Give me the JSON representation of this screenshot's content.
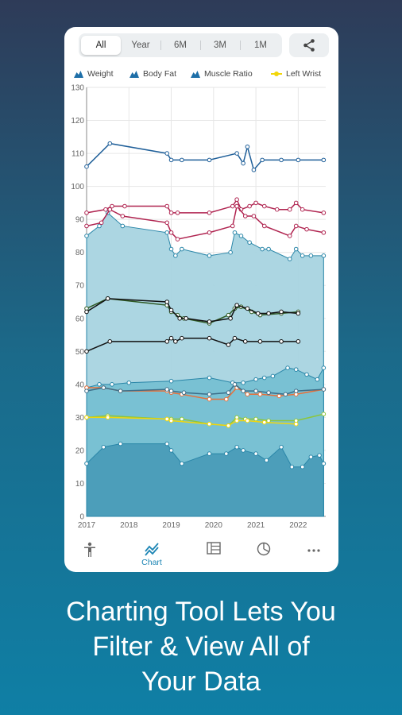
{
  "ranges": {
    "options": [
      "All",
      "Year",
      "6M",
      "3M",
      "1M"
    ],
    "selected": "All"
  },
  "toolbar": {
    "share_icon": "share-icon"
  },
  "legend": [
    {
      "label": "Weight",
      "color": "#1e6fa8",
      "icon": "mountain-icon"
    },
    {
      "label": "Body Fat",
      "color": "#1e6fa8",
      "icon": "mountain-icon"
    },
    {
      "label": "Muscle Ratio",
      "color": "#1e6fa8",
      "icon": "mountain-icon"
    },
    {
      "label": "Left Wrist",
      "color": "#f2d60a",
      "icon": "line-dot-icon"
    }
  ],
  "chart_data": {
    "type": "line",
    "x_ticks": [
      "2017",
      "2018",
      "2019",
      "2020",
      "2021",
      "2022"
    ],
    "y_ticks": [
      0,
      10,
      20,
      30,
      40,
      50,
      60,
      70,
      80,
      90,
      100,
      110,
      120,
      130
    ],
    "ylim": [
      0,
      130
    ],
    "xlim": [
      2017.0,
      2022.65
    ],
    "grid": true,
    "areas": [
      {
        "name": "",
        "color": "#a8d4e0",
        "x": [
          2017.0,
          2017.3,
          2017.5,
          2017.85,
          2018.9,
          2019.0,
          2019.1,
          2019.25,
          2019.9,
          2020.4,
          2020.5,
          2020.65,
          2020.85,
          2021.15,
          2021.3,
          2021.8,
          2021.95,
          2022.1,
          2022.3,
          2022.6
        ],
        "values": [
          85,
          88,
          92,
          88,
          86,
          81,
          79,
          81,
          79,
          80,
          86,
          85,
          83,
          81,
          81,
          78,
          81,
          79,
          79,
          79
        ]
      },
      {
        "name": "",
        "color": "#76c0d2",
        "x": [
          2017.0,
          2017.3,
          2017.6,
          2018.0,
          2019.0,
          2019.9,
          2020.45,
          2020.7,
          2021.0,
          2021.2,
          2021.4,
          2021.75,
          2021.95,
          2022.2,
          2022.45,
          2022.6
        ],
        "values": [
          39,
          40,
          40,
          40.5,
          41,
          42,
          40.5,
          40.5,
          41.5,
          42,
          42.5,
          45,
          44.5,
          43,
          41.5,
          45
        ]
      },
      {
        "name": "",
        "color": "#4a9cb8",
        "x": [
          2017.0,
          2017.4,
          2017.8,
          2018.9,
          2019.0,
          2019.25,
          2019.9,
          2020.3,
          2020.55,
          2020.7,
          2021.0,
          2021.25,
          2021.6,
          2021.85,
          2022.1,
          2022.3,
          2022.5,
          2022.6
        ],
        "values": [
          16,
          21,
          22,
          22,
          20,
          16,
          19,
          19,
          21,
          20,
          19,
          17,
          21,
          15,
          15,
          18,
          18.5,
          16
        ]
      }
    ],
    "series": [
      {
        "name": "",
        "color": "#1f5f99",
        "x": [
          2017.0,
          2017.55,
          2018.9,
          2019.0,
          2019.25,
          2019.9,
          2020.55,
          2020.7,
          2020.8,
          2020.95,
          2021.15,
          2021.6,
          2022.0,
          2022.6
        ],
        "values": [
          106,
          113,
          110,
          108,
          108,
          108,
          110,
          107,
          112,
          105,
          108,
          108,
          108,
          108
        ]
      },
      {
        "name": "",
        "color": "#b02450",
        "x": [
          2017.0,
          2017.45,
          2017.6,
          2017.9,
          2018.9,
          2019.0,
          2019.15,
          2019.9,
          2020.45,
          2020.55,
          2020.65,
          2020.85,
          2021.0,
          2021.2,
          2021.5,
          2021.8,
          2021.95,
          2022.1,
          2022.6
        ],
        "values": [
          92,
          93,
          94,
          94,
          94,
          92,
          92,
          92,
          94,
          96,
          93,
          94,
          95,
          94,
          93,
          93,
          95,
          93,
          92
        ]
      },
      {
        "name": "",
        "color": "#b02450",
        "x": [
          2017.0,
          2017.35,
          2017.55,
          2017.85,
          2018.9,
          2019.0,
          2019.15,
          2019.9,
          2020.45,
          2020.55,
          2020.75,
          2020.95,
          2021.2,
          2021.8,
          2021.95,
          2022.2,
          2022.6
        ],
        "values": [
          88,
          89,
          93,
          91,
          89,
          86,
          84,
          86,
          88,
          94,
          91,
          91,
          88,
          85,
          88,
          87,
          86
        ]
      },
      {
        "name": "",
        "color": "#2f5a25",
        "x": [
          2017.0,
          2017.5,
          2018.9,
          2019.0,
          2019.15,
          2019.3,
          2019.9,
          2020.35,
          2020.5,
          2020.65,
          2020.9,
          2021.1,
          2021.6,
          2022.0
        ],
        "values": [
          63,
          66,
          64,
          62,
          61,
          60,
          58.5,
          61,
          63,
          63.5,
          62,
          61,
          61.5,
          62
        ]
      },
      {
        "name": "",
        "color": "#111111",
        "x": [
          2017.0,
          2017.5,
          2018.9,
          2019.0,
          2019.2,
          2019.35,
          2019.9,
          2020.4,
          2020.55,
          2020.8,
          2021.05,
          2021.3,
          2021.6,
          2022.0
        ],
        "values": [
          62,
          66,
          65,
          62.5,
          60,
          60,
          59,
          60,
          64,
          63,
          61.5,
          61.5,
          62,
          61.5
        ]
      },
      {
        "name": "",
        "color": "#111111",
        "x": [
          2017.0,
          2017.55,
          2018.9,
          2019.0,
          2019.1,
          2019.25,
          2019.9,
          2020.35,
          2020.5,
          2020.75,
          2021.1,
          2021.6,
          2022.0
        ],
        "values": [
          50,
          53,
          53,
          54,
          53,
          54,
          54,
          52,
          54,
          53,
          53,
          53,
          53
        ]
      },
      {
        "name": "",
        "color": "#e8703a",
        "x": [
          2017.0,
          2017.4,
          2017.8,
          2018.9,
          2019.0,
          2019.25,
          2019.9,
          2020.3,
          2020.55,
          2020.8,
          2021.1,
          2021.55,
          2021.95,
          2022.6
        ],
        "values": [
          39,
          39,
          38,
          38,
          37.5,
          37,
          35.5,
          35.5,
          39,
          37,
          37,
          36.5,
          37,
          38.5
        ]
      },
      {
        "name": "",
        "color": "#3d6f8a",
        "x": [
          2017.0,
          2017.4,
          2017.8,
          2018.9,
          2019.0,
          2019.3,
          2019.9,
          2020.35,
          2020.5,
          2020.7,
          2021.0,
          2021.3,
          2021.7,
          2021.95,
          2022.6
        ],
        "values": [
          38,
          39,
          38,
          38.5,
          38,
          37.5,
          37,
          37.5,
          40,
          38,
          38,
          37.5,
          37,
          38,
          38.5
        ]
      },
      {
        "name": "",
        "color": "#8cc63f",
        "x": [
          2017.0,
          2017.5,
          2018.9,
          2019.0,
          2019.25,
          2019.9,
          2020.35,
          2020.55,
          2020.75,
          2021.0,
          2021.3,
          2021.95,
          2022.6
        ],
        "values": [
          30,
          30.5,
          29.5,
          29.5,
          29.5,
          28,
          27.5,
          30,
          29.5,
          29.5,
          29,
          29,
          31
        ]
      },
      {
        "name": "Left Wrist",
        "color": "#f2d60a",
        "x": [
          2017.0,
          2017.5,
          2018.9,
          2019.0,
          2019.9,
          2020.35,
          2020.55,
          2020.8,
          2021.2,
          2021.95
        ],
        "values": [
          30,
          30,
          29.5,
          29,
          28,
          27.5,
          29,
          29,
          28.5,
          28
        ]
      }
    ]
  },
  "navbar": [
    {
      "icon": "body-figure-icon",
      "label": ""
    },
    {
      "icon": "chart-icon",
      "label": "Chart",
      "active": true
    },
    {
      "icon": "table-icon",
      "label": ""
    },
    {
      "icon": "pie-chart-icon",
      "label": ""
    },
    {
      "icon": "more-icon",
      "label": ""
    }
  ],
  "caption": {
    "line1": "Charting Tool Lets You",
    "line2": "Filter & View All of",
    "line3": "Your Data"
  }
}
